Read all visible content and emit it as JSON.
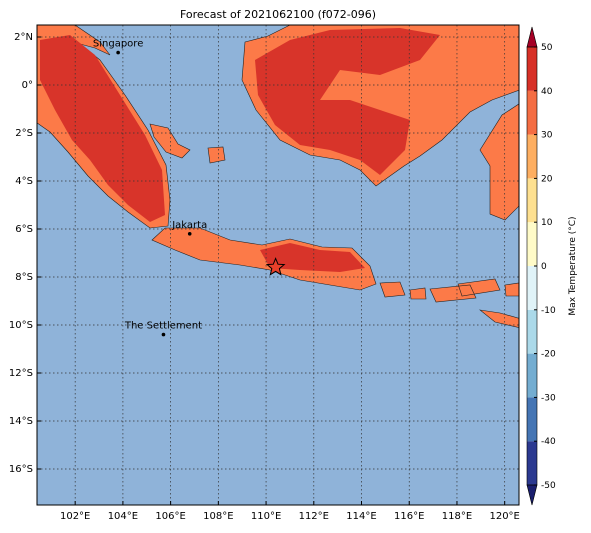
{
  "title": "Forecast of 2021062100 (f072-096)",
  "map": {
    "lon_range": [
      100.4,
      120.6
    ],
    "lat_range": [
      -17.5,
      2.5
    ],
    "lon_ticks": [
      {
        "value": 102,
        "label": "102°E"
      },
      {
        "value": 104,
        "label": "104°E"
      },
      {
        "value": 106,
        "label": "106°E"
      },
      {
        "value": 108,
        "label": "108°E"
      },
      {
        "value": 110,
        "label": "110°E"
      },
      {
        "value": 112,
        "label": "112°E"
      },
      {
        "value": 114,
        "label": "114°E"
      },
      {
        "value": 116,
        "label": "116°E"
      },
      {
        "value": 118,
        "label": "118°E"
      },
      {
        "value": 120,
        "label": "120°E"
      }
    ],
    "lat_ticks": [
      {
        "value": 2,
        "label": "2°N"
      },
      {
        "value": 0,
        "label": "0°"
      },
      {
        "value": -2,
        "label": "2°S"
      },
      {
        "value": -4,
        "label": "4°S"
      },
      {
        "value": -6,
        "label": "6°S"
      },
      {
        "value": -8,
        "label": "8°S"
      },
      {
        "value": -10,
        "label": "10°S"
      },
      {
        "value": -12,
        "label": "12°S"
      },
      {
        "value": -14,
        "label": "14°S"
      },
      {
        "value": -16,
        "label": "16°S"
      }
    ],
    "cities": [
      {
        "name": "Singapore",
        "lon": 103.8,
        "lat": 1.35
      },
      {
        "name": "Jakarta",
        "lon": 106.8,
        "lat": -6.2
      },
      {
        "name": "The Settlement",
        "lon": 105.7,
        "lat": -10.4
      }
    ],
    "marker": {
      "lon": 110.4,
      "lat": -7.6
    }
  },
  "colorbar": {
    "label": "Max Temperature (°C)",
    "ticks": [
      -50,
      -40,
      -30,
      -20,
      -10,
      0,
      10,
      20,
      30,
      40,
      50
    ],
    "colors": [
      "#2b3990",
      "#4575b4",
      "#74add1",
      "#abd9e9",
      "#e0f3f8",
      "#fffbc8",
      "#fee090",
      "#fdae61",
      "#f46d43",
      "#d73027"
    ],
    "under_color": "#1a1f6e",
    "over_color": "#a50026"
  }
}
